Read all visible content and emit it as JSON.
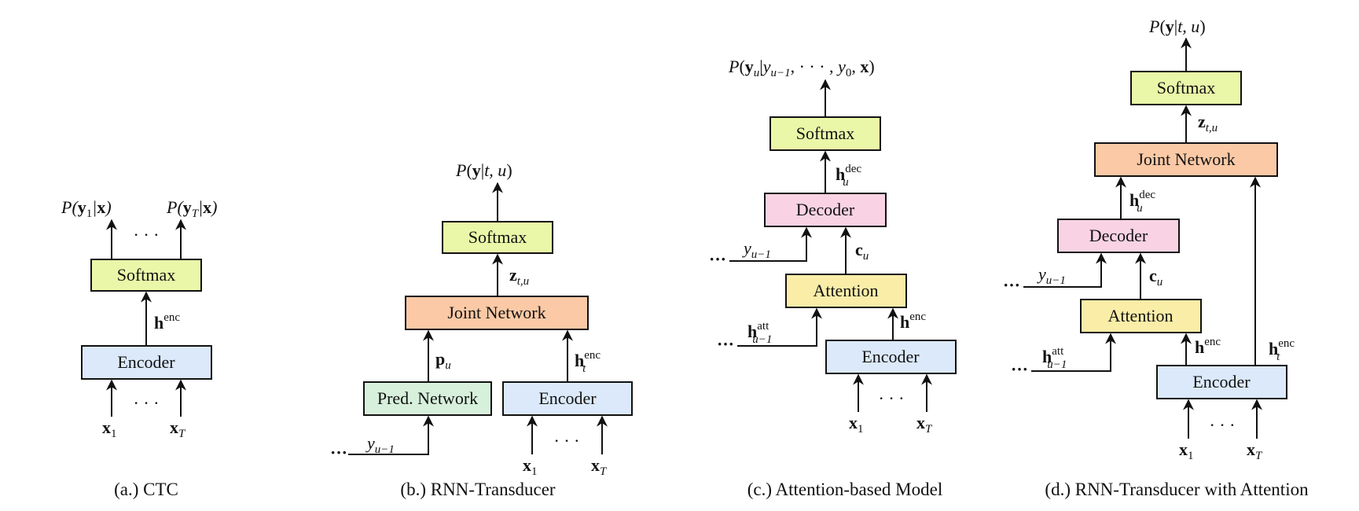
{
  "colors": {
    "encoder": "#dbe9fa",
    "softmax": "#eaf7a8",
    "joint": "#fbc9a5",
    "pred": "#d7f0dc",
    "decoder": "#f9d3e3",
    "attention": "#faeda8"
  },
  "panel_a": {
    "caption_prefix": "(a.)",
    "caption": "CTC",
    "softmax": "Softmax",
    "encoder": "Encoder",
    "output_1": "P(y₁|x)",
    "output_T": "P(y_T|x)",
    "ellipsis": "· · ·",
    "h_enc": "h^enc",
    "x1": "x₁",
    "xT": "x_T"
  },
  "panel_b": {
    "caption_prefix": "(b.)",
    "caption": "RNN-Transducer",
    "output": "P(y|t, u)",
    "softmax": "Softmax",
    "z": "z_{t,u}",
    "joint": "Joint Network",
    "p": "p_u",
    "h_enc": "h_t^enc",
    "pred": "Pred. Network",
    "encoder": "Encoder",
    "y": "y_{u−1}",
    "ellipsis": "· · ·",
    "x1": "x₁",
    "xT": "x_T"
  },
  "panel_c": {
    "caption_prefix": "(c.)",
    "caption": "Attention-based Model",
    "output": "P(y_u|y_{u−1}, · · · , y₀, x)",
    "softmax": "Softmax",
    "h_dec": "h_u^dec",
    "decoder": "Decoder",
    "y": "y_{u−1}",
    "c": "c_u",
    "attention": "Attention",
    "h_att": "h_{u−1}^att",
    "h_enc": "h^enc",
    "encoder": "Encoder",
    "ellipsis": "· · ·",
    "x1": "x₁",
    "xT": "x_T"
  },
  "panel_d": {
    "caption_prefix": "(d.)",
    "caption": "RNN-Transducer with Attention",
    "output": "P(y|t, u)",
    "softmax": "Softmax",
    "z": "z_{t,u}",
    "joint": "Joint Network",
    "h_dec": "h_u^dec",
    "decoder": "Decoder",
    "y": "y_{u−1}",
    "c": "c_u",
    "attention": "Attention",
    "h_att": "h_{u−1}^att",
    "h_enc": "h^enc",
    "h_enc_t": "h_t^enc",
    "encoder": "Encoder",
    "ellipsis": "· · ·",
    "x1": "x₁",
    "xT": "x_T"
  }
}
